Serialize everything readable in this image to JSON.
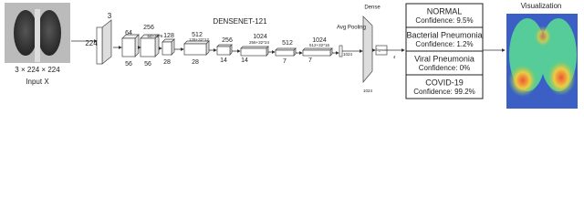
{
  "input": {
    "dims": "3 × 224 × 224",
    "label": "Input X"
  },
  "network": {
    "title": "DENSENET-121",
    "labels": [
      "3",
      "224",
      "64",
      "56",
      "256",
      "64+32*6",
      "56",
      "128",
      "28",
      "512",
      "128+32*12",
      "28",
      "256",
      "14",
      "1024",
      "256+32*24",
      "14",
      "512",
      "7",
      "1024",
      "512+32*16",
      "7",
      "1024"
    ],
    "pooling": "Avg Pooling",
    "dense": "Dense",
    "dense_size": "1024",
    "activation": "Sigmoid",
    "output_size": "4"
  },
  "outputs": [
    {
      "class": "NORMAL",
      "confidence": "Confidence: 9.5%"
    },
    {
      "class": "Bacterial Pneumonia",
      "confidence": "Confidence: 1.2%"
    },
    {
      "class": "Viral Pneumonia",
      "confidence": "Confidence: 0%"
    },
    {
      "class": "COVID-19",
      "confidence": "Confidence: 99.2%"
    }
  ],
  "visualization": {
    "title": "Visualization"
  }
}
